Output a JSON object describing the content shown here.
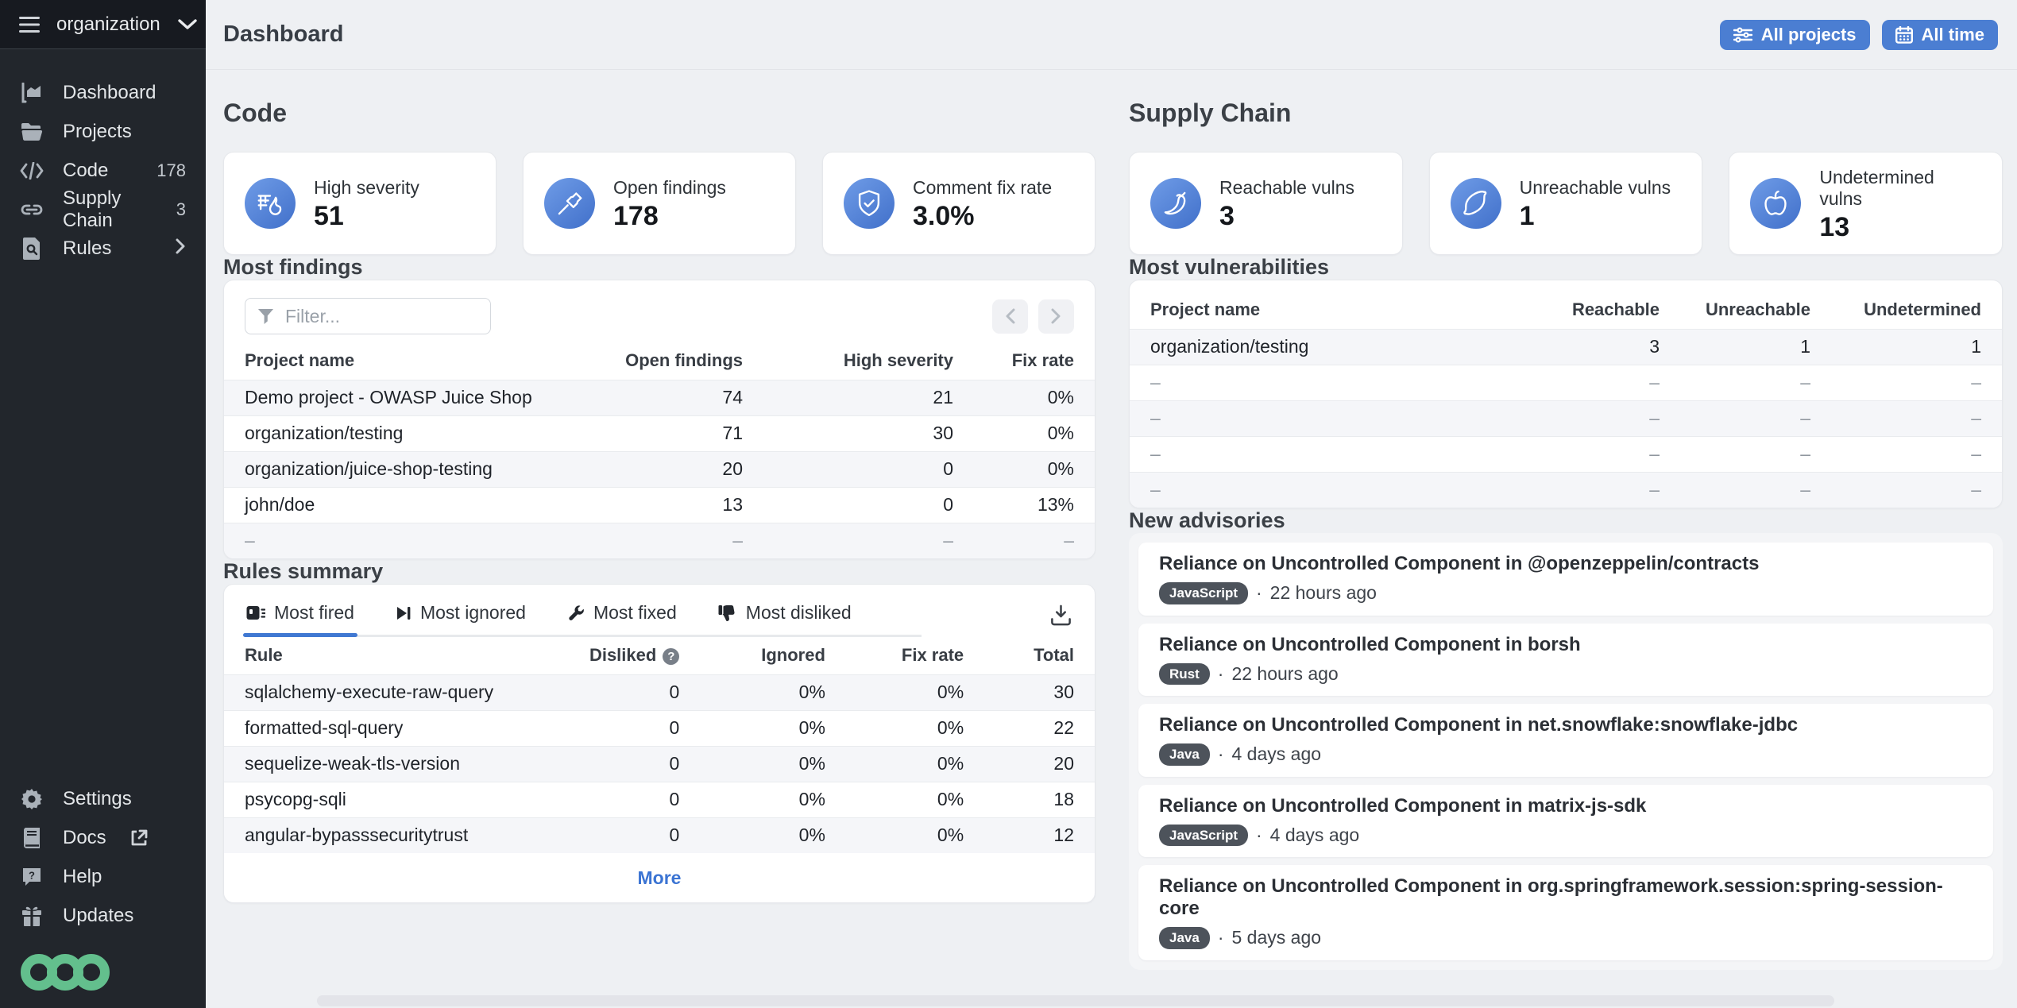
{
  "sidebar": {
    "org_name": "organization",
    "items": [
      {
        "label": "Dashboard",
        "badge": ""
      },
      {
        "label": "Projects",
        "badge": ""
      },
      {
        "label": "Code",
        "badge": "178"
      },
      {
        "label": "Supply Chain",
        "badge": "3"
      },
      {
        "label": "Rules",
        "badge": ""
      }
    ],
    "footer_items": [
      {
        "label": "Settings"
      },
      {
        "label": "Docs"
      },
      {
        "label": "Help"
      },
      {
        "label": "Updates"
      }
    ]
  },
  "header": {
    "title": "Dashboard",
    "projects_filter": "All projects",
    "time_filter": "All time"
  },
  "code": {
    "title": "Code",
    "stats": [
      {
        "label": "High severity",
        "value": "51",
        "icon": "fire-icon"
      },
      {
        "label": "Open findings",
        "value": "178",
        "icon": "hammer-icon"
      },
      {
        "label": "Comment fix rate",
        "value": "3.0%",
        "icon": "shield-check-icon"
      }
    ],
    "most_findings": {
      "title": "Most findings",
      "filter_placeholder": "Filter...",
      "columns": [
        "Project name",
        "Open findings",
        "High severity",
        "Fix rate"
      ],
      "rows": [
        [
          "Demo project - OWASP Juice Shop",
          "74",
          "21",
          "0%"
        ],
        [
          "organization/testing",
          "71",
          "30",
          "0%"
        ],
        [
          "organization/juice-shop-testing",
          "20",
          "0",
          "0%"
        ],
        [
          "john/doe",
          "13",
          "0",
          "13%"
        ],
        [
          "–",
          "–",
          "–",
          "–"
        ]
      ]
    },
    "rules_summary": {
      "title": "Rules summary",
      "tabs": [
        "Most fired",
        "Most ignored",
        "Most fixed",
        "Most disliked"
      ],
      "active_tab": 0,
      "columns": [
        "Rule",
        "Disliked",
        "Ignored",
        "Fix rate",
        "Total"
      ],
      "help_column": 1,
      "rows": [
        [
          "sqlalchemy-execute-raw-query",
          "0",
          "0%",
          "0%",
          "30"
        ],
        [
          "formatted-sql-query",
          "0",
          "0%",
          "0%",
          "22"
        ],
        [
          "sequelize-weak-tls-version",
          "0",
          "0%",
          "0%",
          "20"
        ],
        [
          "psycopg-sqli",
          "0",
          "0%",
          "0%",
          "18"
        ],
        [
          "angular-bypasssecuritytrust",
          "0",
          "0%",
          "0%",
          "12"
        ]
      ],
      "more_label": "More"
    }
  },
  "supply_chain": {
    "title": "Supply Chain",
    "stats": [
      {
        "label": "Reachable vulns",
        "value": "3",
        "icon": "chili-pepper-icon"
      },
      {
        "label": "Unreachable vulns",
        "value": "1",
        "icon": "lemon-icon"
      },
      {
        "label": "Undetermined vulns",
        "value": "13",
        "icon": "bell-pepper-icon"
      }
    ],
    "most_vulnerabilities": {
      "title": "Most vulnerabilities",
      "columns": [
        "Project name",
        "Reachable",
        "Unreachable",
        "Undetermined"
      ],
      "rows": [
        [
          "organization/testing",
          "3",
          "1",
          "1"
        ],
        [
          "–",
          "–",
          "–",
          "–"
        ],
        [
          "–",
          "–",
          "–",
          "–"
        ],
        [
          "–",
          "–",
          "–",
          "–"
        ],
        [
          "–",
          "–",
          "–",
          "–"
        ]
      ]
    },
    "new_advisories": {
      "title": "New advisories",
      "separator": "·",
      "items": [
        {
          "title": "Reliance on Uncontrolled Component in @openzeppelin/contracts",
          "language": "JavaScript",
          "time": "22 hours ago"
        },
        {
          "title": "Reliance on Uncontrolled Component in borsh",
          "language": "Rust",
          "time": "22 hours ago"
        },
        {
          "title": "Reliance on Uncontrolled Component in net.snowflake:snowflake-jdbc",
          "language": "Java",
          "time": "4 days ago"
        },
        {
          "title": "Reliance on Uncontrolled Component in matrix-js-sdk",
          "language": "JavaScript",
          "time": "4 days ago"
        },
        {
          "title": "Reliance on Uncontrolled Component in org.springframework.session:spring-session-core",
          "language": "Java",
          "time": "5 days ago"
        }
      ]
    }
  },
  "colors": {
    "accent_blue": "#4b7ed2",
    "link_blue": "#3b74d3",
    "sidebar_bg": "#22262c",
    "logo_green": "#63bf8d",
    "row_stripe": "#f5f6f9",
    "badge_bg": "#4d535b"
  }
}
